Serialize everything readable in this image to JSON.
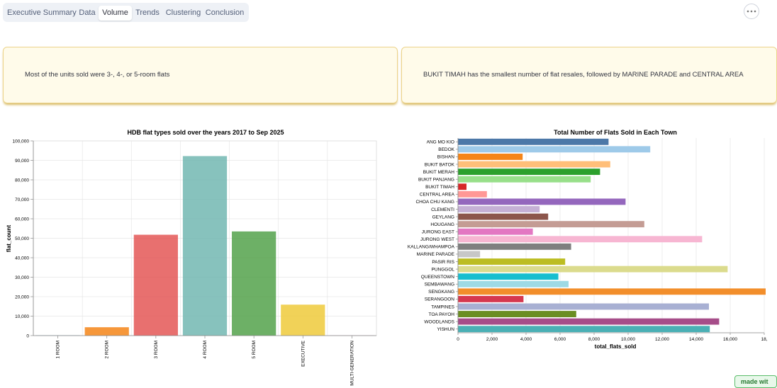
{
  "tabs": [
    {
      "label": "Executive Summary",
      "active": false
    },
    {
      "label": "Data",
      "active": false
    },
    {
      "label": "Volume",
      "active": true
    },
    {
      "label": "Trends",
      "active": false
    },
    {
      "label": "Clustering",
      "active": false
    },
    {
      "label": "Conclusion",
      "active": false
    }
  ],
  "menu_icon": "more-horizontal-icon",
  "cards": [
    {
      "text": "Most of the units sold were 3-, 4-, or 5-room flats"
    },
    {
      "text": "BUKIT TIMAH has the smallest number of flat resales, followed by MARINE PARADE and CENTRAL AREA"
    }
  ],
  "footer_badge": "made wit",
  "chart_data": [
    {
      "type": "bar",
      "title": "HDB flat types sold over the years 2017 to Sep 2025",
      "xlabel": "",
      "ylabel": "flat_count",
      "categories": [
        "1 ROOM",
        "2 ROOM",
        "3 ROOM",
        "4 ROOM",
        "5 ROOM",
        "EXECUTIVE",
        "MULTI-GENERATION"
      ],
      "values": [
        150,
        4300,
        51800,
        92200,
        53500,
        15900,
        100
      ],
      "colors": [
        "#4c78a8",
        "#f58518",
        "#e45756",
        "#72b7b2",
        "#54a24b",
        "#eeca3b",
        "#b279a2"
      ],
      "ylim": [
        0,
        100000
      ],
      "yticks": [
        "0",
        "10,000",
        "20,000",
        "30,000",
        "40,000",
        "50,000",
        "60,000",
        "70,000",
        "80,000",
        "90,000",
        "100,000"
      ],
      "grid": true
    },
    {
      "type": "bar",
      "orientation": "horizontal",
      "title": "Total Number of Flats Sold in Each Town",
      "xlabel": "total_flats_sold",
      "ylabel": "",
      "categories": [
        "ANG MO KIO",
        "BEDOK",
        "BISHAN",
        "BUKIT BATOK",
        "BUKIT MERAH",
        "BUKIT PANJANG",
        "BUKIT TIMAH",
        "CENTRAL AREA",
        "CHOA CHU KANG",
        "CLEMENTI",
        "GEYLANG",
        "HOUGANG",
        "JURONG EAST",
        "JURONG WEST",
        "KALLANG/WHAMPOA",
        "MARINE PARADE",
        "PASIR RIS",
        "PUNGGOL",
        "QUEENSTOWN",
        "SEMBAWANG",
        "SENGKANG",
        "SERANGOON",
        "TAMPINES",
        "TOA PAYOH",
        "WOODLANDS",
        "YISHUN"
      ],
      "values": [
        8850,
        11300,
        3800,
        8950,
        8350,
        7800,
        500,
        1700,
        9850,
        4800,
        5300,
        10950,
        4400,
        14350,
        6650,
        1300,
        6300,
        15850,
        5900,
        6500,
        18500,
        3850,
        14750,
        6950,
        15350,
        14800
      ],
      "colors": [
        "#4c78a8",
        "#9ecae9",
        "#f58518",
        "#ffbf79",
        "#2ca02c",
        "#98df8a",
        "#d62728",
        "#ff9896",
        "#9467bd",
        "#c5b0d5",
        "#8c564b",
        "#c49c94",
        "#e377c2",
        "#f7b6d2",
        "#7f7f7f",
        "#c7c7c7",
        "#bcbd22",
        "#dbdb8d",
        "#17becf",
        "#9edae5",
        "#f28e2b",
        "#d6384f",
        "#a8b0d3",
        "#6b8e23",
        "#a64d89",
        "#4ab0b5"
      ],
      "xlim": [
        0,
        18000
      ],
      "xticks": [
        "0",
        "2,000",
        "4,000",
        "6,000",
        "8,000",
        "10,000",
        "12,000",
        "14,000",
        "16,000",
        "18,"
      ],
      "grid": true
    }
  ]
}
